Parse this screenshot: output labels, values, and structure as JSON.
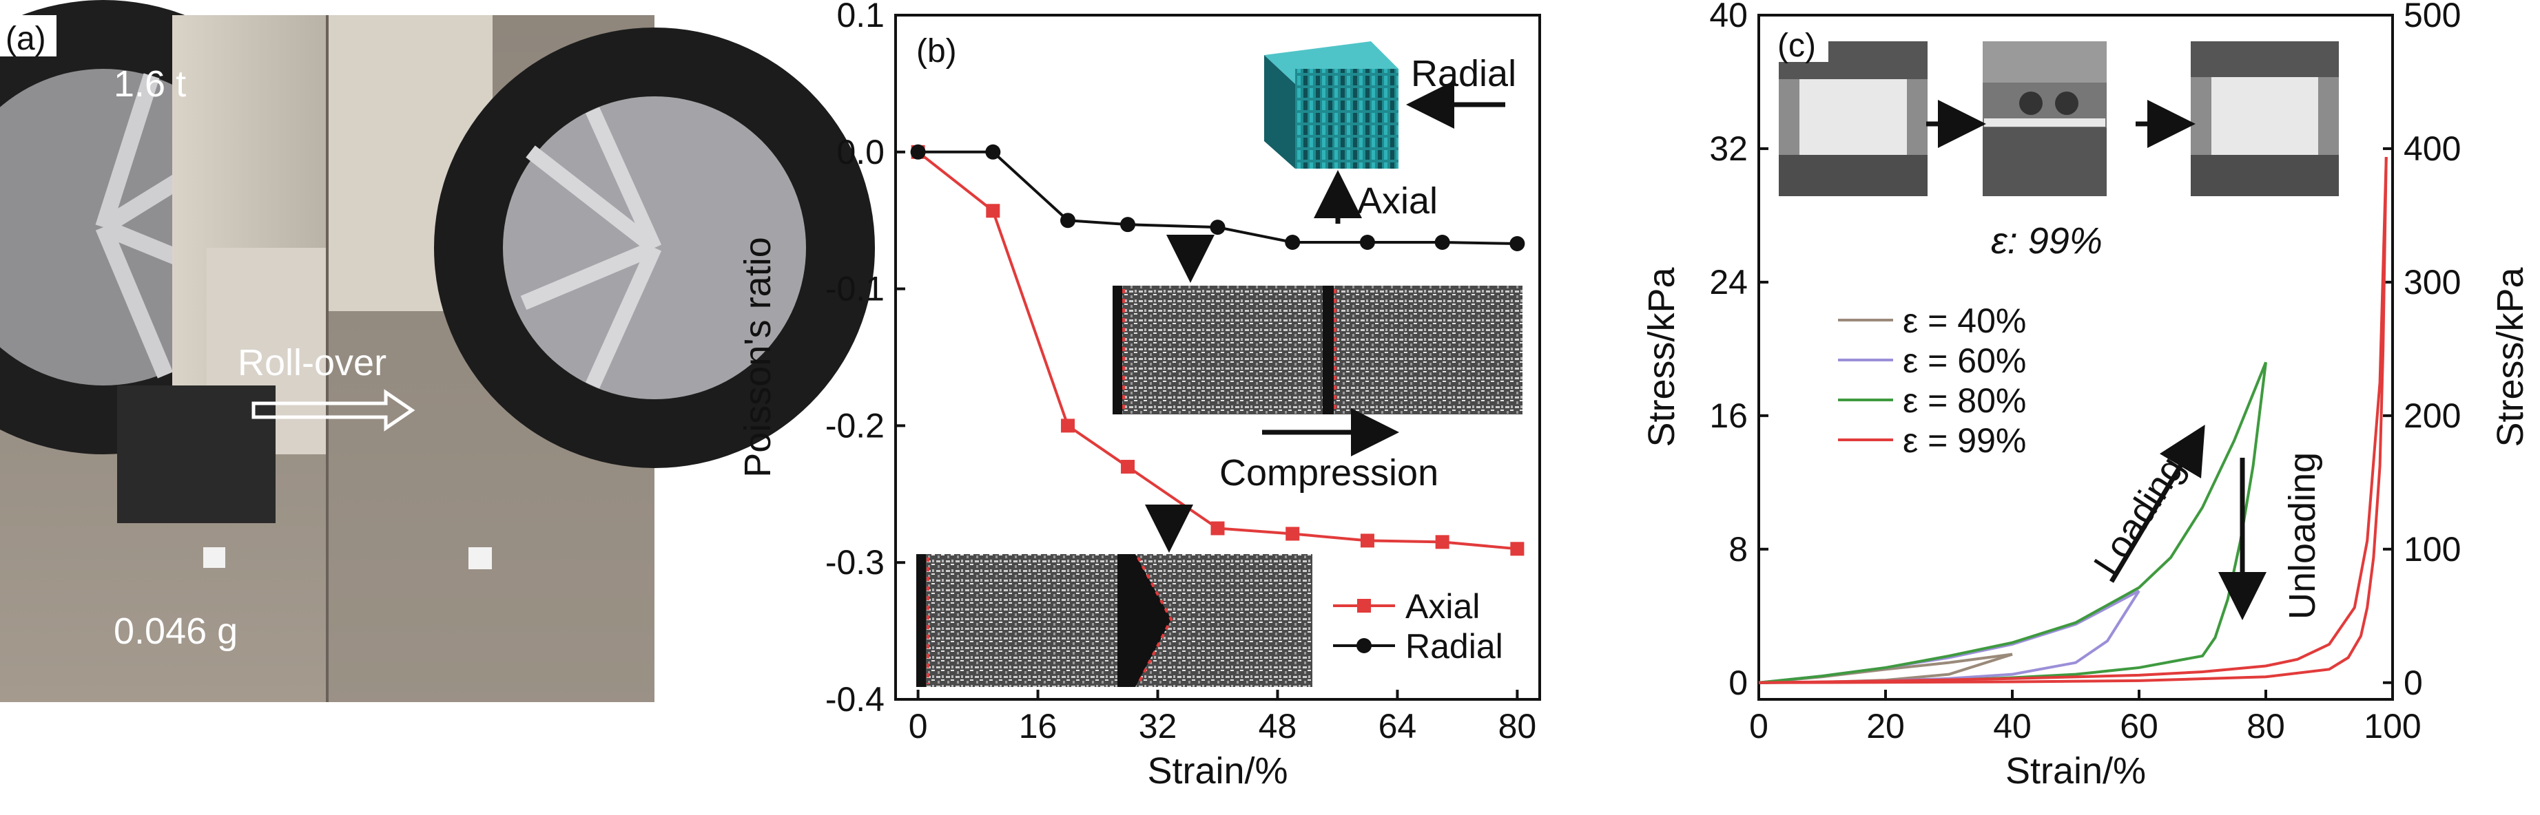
{
  "panel_a": {
    "label": "(a)",
    "weight_text": "1.6 t",
    "action_text": "Roll-over",
    "mass_text": "0.046 g"
  },
  "panel_b": {
    "label": "(b)",
    "inset_labels": {
      "radial": "Radial",
      "axial": "Axial",
      "compression": "Compression"
    }
  },
  "panel_c": {
    "label": "(c)",
    "strain_note": "ε: 99%",
    "loading": "Loading",
    "unloading": "Unloading"
  },
  "chart_data": [
    {
      "type": "line",
      "xlabel": "Strain/%",
      "ylabel": "Poisson's ratio",
      "xlim": [
        -3,
        83
      ],
      "ylim": [
        -0.4,
        0.1
      ],
      "xticks": [
        "0",
        "16",
        "32",
        "48",
        "64",
        "80"
      ],
      "yticks": [
        "0.1",
        "0.0",
        "-0.1",
        "-0.2",
        "-0.3",
        "-0.4"
      ],
      "legend": "bottom-right",
      "series": [
        {
          "name": "Axial",
          "color": "#e23b3b",
          "marker": "square",
          "x": [
            0,
            10,
            20,
            28,
            40,
            50,
            60,
            70,
            80
          ],
          "y": [
            0,
            -0.043,
            -0.2,
            -0.23,
            -0.275,
            -0.279,
            -0.284,
            -0.285,
            -0.29
          ]
        },
        {
          "name": "Radial",
          "color": "#111111",
          "marker": "circle",
          "x": [
            0,
            10,
            20,
            28,
            40,
            50,
            60,
            70,
            80
          ],
          "y": [
            0,
            0,
            -0.05,
            -0.053,
            -0.055,
            -0.066,
            -0.066,
            -0.066,
            -0.067
          ]
        }
      ]
    },
    {
      "type": "line",
      "xlabel": "Strain/%",
      "ylabel": "Stress/kPa",
      "ylabel_right": "Stress/kPa",
      "xlim": [
        0,
        100
      ],
      "ylim": [
        -1,
        40
      ],
      "ylim_right": [
        -12.5,
        500
      ],
      "xticks": [
        "0",
        "20",
        "40",
        "60",
        "80",
        "100"
      ],
      "yticks": [
        "0",
        "8",
        "16",
        "24",
        "32",
        "40"
      ],
      "yticks_right": [
        "0",
        "100",
        "200",
        "300",
        "400",
        "500"
      ],
      "legend": "center-left",
      "series": [
        {
          "name": "ε = 40%",
          "color": "#9a8a7a",
          "loading": {
            "x": [
              0,
              10,
              20,
              30,
              40
            ],
            "y": [
              0,
              0.35,
              0.8,
              1.2,
              1.7
            ]
          },
          "unloading": {
            "x": [
              40,
              30,
              20,
              10,
              0
            ],
            "y": [
              1.7,
              0.5,
              0.15,
              0.03,
              0
            ]
          }
        },
        {
          "name": "ε = 60%",
          "color": "#9b8fd8",
          "loading": {
            "x": [
              0,
              10,
              20,
              30,
              40,
              50,
              60
            ],
            "y": [
              0,
              0.4,
              0.9,
              1.5,
              2.3,
              3.5,
              5.5
            ]
          },
          "unloading": {
            "x": [
              60,
              55,
              50,
              40,
              30,
              20,
              10,
              0
            ],
            "y": [
              5.5,
              2.5,
              1.2,
              0.5,
              0.25,
              0.1,
              0.03,
              0
            ]
          }
        },
        {
          "name": "ε = 80%",
          "color": "#3f9a3f",
          "loading": {
            "x": [
              0,
              10,
              20,
              30,
              40,
              50,
              60,
              65,
              70,
              75,
              80
            ],
            "y": [
              0,
              0.4,
              0.9,
              1.6,
              2.4,
              3.6,
              5.7,
              7.5,
              10.5,
              14.5,
              19.2
            ]
          },
          "unloading": {
            "x": [
              80,
              78,
              76,
              74,
              72,
              70,
              60,
              50,
              40,
              30,
              20,
              10,
              0
            ],
            "y": [
              19.2,
              13,
              8.5,
              5,
              2.7,
              1.6,
              0.9,
              0.5,
              0.3,
              0.15,
              0.07,
              0.02,
              0
            ]
          }
        },
        {
          "name": "ε = 99%",
          "color": "#e23b3b",
          "loading": {
            "x": [
              0,
              20,
              40,
              60,
              70,
              80,
              85,
              90,
              94,
              96,
              98,
              99
            ],
            "y": [
              0,
              0.1,
              0.25,
              0.45,
              0.65,
              1.0,
              1.4,
              2.3,
              4.5,
              8.5,
              18,
              31.5
            ]
          },
          "unloading": {
            "x": [
              99,
              98.5,
              98,
              97,
              96,
              95,
              93,
              90,
              80,
              60,
              40,
              20,
              0
            ],
            "y": [
              31.5,
              20,
              13,
              7.5,
              4.5,
              2.8,
              1.5,
              0.8,
              0.35,
              0.12,
              0.05,
              0.02,
              0
            ]
          }
        }
      ]
    }
  ]
}
